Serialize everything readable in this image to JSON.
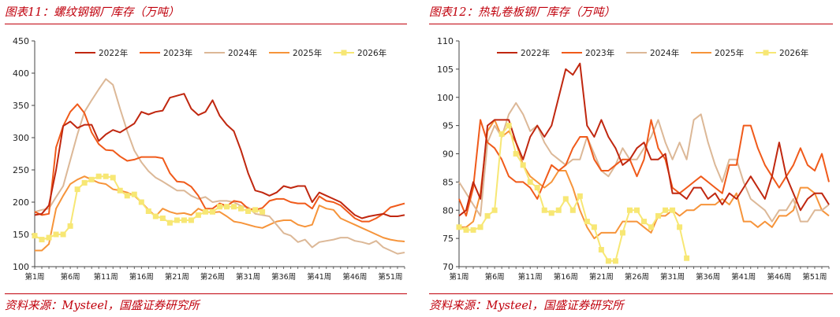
{
  "colors": {
    "accent": "#c0000c",
    "s2022": "#c0270f",
    "s2023": "#f05a1a",
    "s2024": "#dcb897",
    "s2025": "#f6943a",
    "s2026": "#f7e774"
  },
  "charts": [
    {
      "title": "图表11：螺纹钢钢厂库存（万吨）",
      "source": "资料来源：Mysteel，国盛证券研究所",
      "chart_data": {
        "type": "line",
        "title": "图表11：螺纹钢钢厂库存（万吨）",
        "ylim": [
          100,
          450
        ],
        "yticks": [
          "100",
          "150",
          "200",
          "250",
          "300",
          "350",
          "400",
          "450"
        ],
        "xlim": [
          1,
          53
        ],
        "xticks": [
          {
            "w": 1,
            "label": "第1周"
          },
          {
            "w": 6,
            "label": "第6周"
          },
          {
            "w": 11,
            "label": "第11周"
          },
          {
            "w": 16,
            "label": "第16周"
          },
          {
            "w": 21,
            "label": "第21周"
          },
          {
            "w": 26,
            "label": "第26周"
          },
          {
            "w": 31,
            "label": "第31周"
          },
          {
            "w": 36,
            "label": "第36周"
          },
          {
            "w": 41,
            "label": "第41周"
          },
          {
            "w": 46,
            "label": "第46周"
          },
          {
            "w": 51,
            "label": "第51周"
          }
        ],
        "series": [
          {
            "name": "2022年",
            "color": "#c0270f",
            "values": [
              180,
              182,
              195,
              250,
              318,
              325,
              315,
              320,
              320,
              295,
              305,
              312,
              308,
              315,
              322,
              340,
              336,
              340,
              342,
              362,
              365,
              368,
              345,
              335,
              340,
              358,
              334,
              320,
              310,
              280,
              245,
              218,
              215,
              210,
              215,
              225,
              222,
              225,
              225,
              200,
              215,
              210,
              205,
              200,
              190,
              180,
              175,
              178,
              180,
              182,
              178,
              178,
              180
            ]
          },
          {
            "name": "2023年",
            "color": "#f05a1a",
            "values": [
              185,
              180,
              182,
              285,
              318,
              340,
              352,
              338,
              308,
              290,
              281,
              280,
              271,
              264,
              266,
              270,
              270,
              270,
              268,
              245,
              232,
              231,
              224,
              210,
              190,
              190,
              198,
              194,
              202,
              200,
              190,
              188,
              191,
              202,
              205,
              205,
              200,
              198,
              198,
              190,
              209,
              202,
              200,
              195,
              185,
              175,
              170,
              170,
              175,
              182,
              192,
              195,
              198
            ]
          },
          {
            "name": "2024年",
            "color": "#dcb897",
            "values": [
              185,
              188,
              190,
              208,
              225,
              265,
              305,
              340,
              358,
              375,
              391,
              382,
              345,
              310,
              280,
              262,
              248,
              238,
              232,
              225,
              218,
              218,
              210,
              205,
              208,
              200,
              202,
              202,
              200,
              194,
              192,
              182,
              180,
              178,
              165,
              152,
              148,
              138,
              142,
              130,
              138,
              140,
              142,
              145,
              145,
              140,
              138,
              135,
              140,
              130,
              125,
              120,
              122
            ]
          },
          {
            "name": "2025年",
            "color": "#f6943a",
            "values": [
              125,
              125,
              135,
              190,
              210,
              228,
              235,
              240,
              235,
              230,
              228,
              220,
              218,
              215,
              210,
              200,
              188,
              178,
              190,
              185,
              182,
              183,
              180,
              190,
              185,
              184,
              185,
              178,
              170,
              168,
              165,
              162,
              160,
              165,
              170,
              172,
              172,
              165,
              162,
              165,
              195,
              190,
              188,
              175,
              170,
              165,
              160,
              155,
              150,
              145,
              142,
              140,
              139
            ]
          },
          {
            "name": "2026年",
            "color": "#f7e774",
            "values": [
              148,
              142,
              145,
              150,
              150,
              163,
              220,
              230,
              235,
              240,
              240,
              238,
              218,
              210,
              212,
              200,
              186,
              178,
              175,
              168,
              172,
              172,
              172,
              180,
              185,
              185,
              193,
              193,
              193,
              190,
              186,
              188,
              185
            ]
          }
        ]
      }
    },
    {
      "title": "图表12：热轧卷板钢厂库存（万吨）",
      "source": "资料来源：Mysteel，国盛证券研究所",
      "chart_data": {
        "type": "line",
        "title": "图表12：热轧卷板钢厂库存（万吨）",
        "ylim": [
          70,
          110
        ],
        "yticks": [
          "70",
          "75",
          "80",
          "85",
          "90",
          "95",
          "100",
          "105",
          "110"
        ],
        "xlim": [
          1,
          53
        ],
        "xticks": [
          {
            "w": 1,
            "label": "第1周"
          },
          {
            "w": 6,
            "label": "第6周"
          },
          {
            "w": 11,
            "label": "第11周"
          },
          {
            "w": 16,
            "label": "第16周"
          },
          {
            "w": 21,
            "label": "第21周"
          },
          {
            "w": 26,
            "label": "第26周"
          },
          {
            "w": 31,
            "label": "第31周"
          },
          {
            "w": 36,
            "label": "第36周"
          },
          {
            "w": 41,
            "label": "第41周"
          },
          {
            "w": 46,
            "label": "第46周"
          },
          {
            "w": 51,
            "label": "第51周"
          }
        ],
        "series": [
          {
            "name": "2022年",
            "color": "#c0270f",
            "values": [
              79,
              80,
              85,
              82,
              95,
              96,
              96,
              96,
              92,
              89,
              93,
              95,
              93,
              95,
              100,
              105,
              104,
              106,
              95,
              93,
              96,
              93,
              91,
              88,
              89,
              91,
              92,
              89,
              89,
              90,
              83,
              83,
              82,
              84,
              84,
              82,
              83,
              81,
              83,
              82,
              84,
              86,
              84,
              82,
              86,
              92,
              86,
              83,
              80,
              82,
              83,
              83,
              81
            ]
          },
          {
            "name": "2023年",
            "color": "#f05a1a",
            "values": [
              82,
              79,
              84,
              96,
              92,
              91,
              89,
              86,
              85,
              85,
              84,
              82,
              85,
              88,
              87,
              88,
              91,
              93,
              93,
              89,
              87,
              87,
              88,
              89,
              89,
              86,
              89,
              96,
              91,
              89,
              84,
              83,
              84,
              85,
              86,
              85,
              84,
              83,
              88,
              88,
              95,
              95,
              91,
              88,
              86,
              84,
              86,
              88,
              91,
              88,
              87,
              90,
              85
            ]
          },
          {
            "name": "2024年",
            "color": "#dcb897",
            "values": [
              85,
              83,
              81,
              79,
              92,
              95,
              93,
              97,
              99,
              97,
              94,
              95,
              92,
              90,
              89,
              88,
              89,
              89,
              93,
              90,
              87,
              86,
              88,
              91,
              89,
              89,
              91,
              93,
              96,
              92,
              89,
              92,
              89,
              96,
              97,
              92,
              88,
              85,
              89,
              89,
              85,
              82,
              81,
              80,
              78,
              80,
              80,
              82,
              78,
              78,
              80,
              80,
              81
            ]
          },
          {
            "name": "2025年",
            "color": "#f6943a",
            "values": [
              77,
              77,
              78,
              83,
              94,
              96,
              93,
              94,
              92,
              88,
              86,
              85,
              84,
              85,
              87,
              87,
              84,
              80,
              77,
              75,
              76,
              76,
              76,
              78,
              78,
              78,
              77,
              76,
              79,
              79,
              80,
              79,
              80,
              80,
              81,
              81,
              81,
              82,
              81,
              83,
              78,
              78,
              77,
              78,
              77,
              79,
              79,
              80,
              84,
              84,
              83,
              80,
              79
            ]
          },
          {
            "name": "2026年",
            "color": "#f7e774",
            "values": [
              77,
              76.5,
              76.5,
              77,
              79,
              80,
              93.5,
              95,
              90,
              88,
              85,
              84,
              80,
              79.5,
              80,
              82,
              80,
              82.5,
              78,
              77,
              73,
              71,
              71,
              76,
              80,
              80,
              78,
              77,
              79,
              80,
              80,
              77,
              71.5
            ]
          }
        ]
      }
    }
  ]
}
